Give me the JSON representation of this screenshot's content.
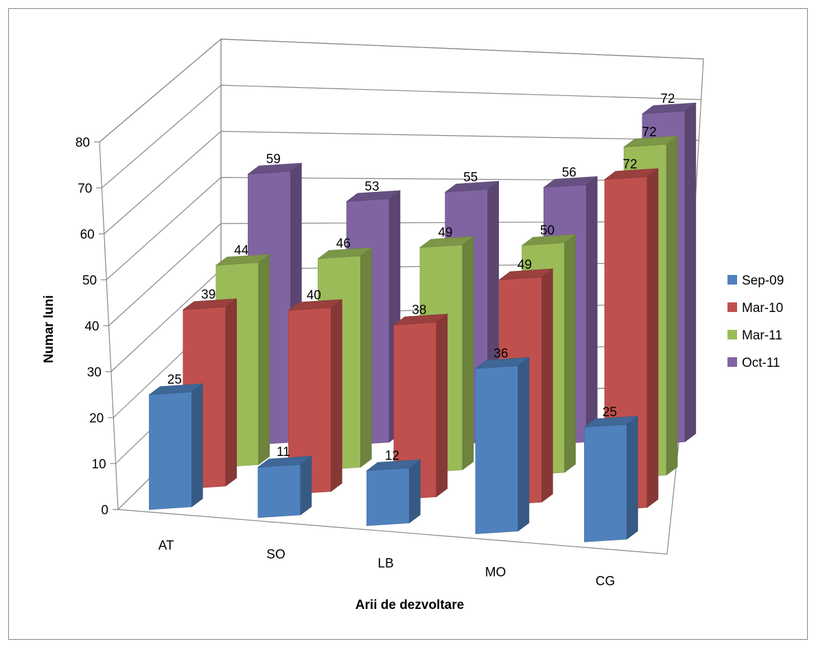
{
  "chart_data": {
    "type": "bar",
    "subtype": "3d-column",
    "title": "",
    "xlabel": "Arii de dezvoltare",
    "ylabel": "Numar luni",
    "categories": [
      "AT",
      "SO",
      "LB",
      "MO",
      "CG"
    ],
    "ylim": [
      0,
      80
    ],
    "yticks": [
      "0",
      "10",
      "20",
      "30",
      "40",
      "50",
      "60",
      "70",
      "80"
    ],
    "grid": true,
    "legend_position": "right",
    "series": [
      {
        "name": "Sep-09",
        "color": "#4f81bd",
        "values": [
          25,
          11,
          12,
          36,
          25
        ]
      },
      {
        "name": "Mar-10",
        "color": "#c0504d",
        "values": [
          39,
          40,
          38,
          49,
          72
        ]
      },
      {
        "name": "Mar-11",
        "color": "#9bbb59",
        "values": [
          44,
          46,
          49,
          50,
          72
        ]
      },
      {
        "name": "Oct-11",
        "color": "#8064a2",
        "values": [
          59,
          53,
          55,
          56,
          72
        ]
      }
    ]
  }
}
